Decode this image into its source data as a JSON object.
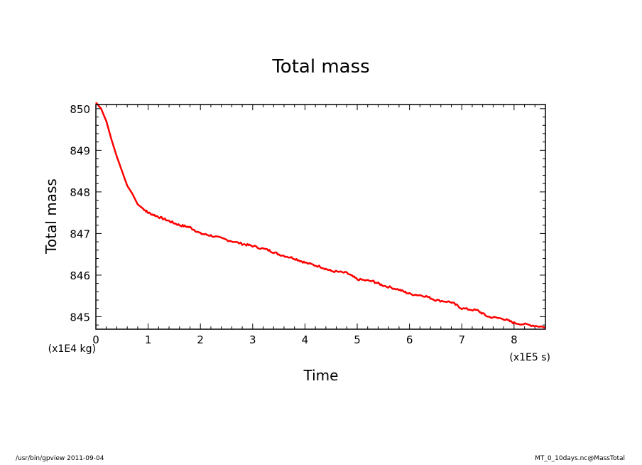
{
  "footer": {
    "left": "/usr/bin/gpview  2011-09-04",
    "right": "MT_0_10days.nc@MassTotal"
  },
  "chart_data": {
    "type": "line",
    "title": "Total mass",
    "xlabel": "Time",
    "ylabel": "Total mass",
    "x_unit": "(x1E5 s)",
    "y_unit": "(x1E4 kg)",
    "xlim": [
      0,
      8.6
    ],
    "ylim": [
      844.7,
      850.1
    ],
    "x_ticks": [
      0,
      1,
      2,
      3,
      4,
      5,
      6,
      7,
      8
    ],
    "x_tick_labels": [
      "0",
      "1",
      "2",
      "3",
      "4",
      "5",
      "6",
      "7",
      "8"
    ],
    "y_ticks": [
      845,
      846,
      847,
      848,
      849,
      850
    ],
    "y_tick_labels": [
      "845",
      "846",
      "847",
      "848",
      "849",
      "850"
    ],
    "grid": false,
    "line_color": "#ff0000",
    "series": [
      {
        "x": [
          0,
          0.1,
          0.2,
          0.3,
          0.4,
          0.5,
          0.6,
          0.7,
          0.8,
          0.9,
          1.0,
          1.2,
          1.4,
          1.6,
          1.8,
          2.0,
          2.2,
          2.5,
          2.8,
          3.0,
          3.3,
          3.5,
          3.8,
          4.0,
          4.3,
          4.5,
          4.8,
          5.0,
          5.3,
          5.5,
          5.8,
          6.0,
          6.3,
          6.5,
          6.8,
          7.0,
          7.3,
          7.5,
          7.8,
          8.0,
          8.3,
          8.6
        ],
        "y": [
          850.15,
          850.0,
          849.7,
          849.25,
          848.85,
          848.5,
          848.15,
          847.95,
          847.7,
          847.6,
          847.5,
          847.4,
          847.3,
          847.2,
          847.15,
          847.0,
          846.95,
          846.85,
          846.75,
          846.7,
          846.6,
          846.5,
          846.4,
          846.3,
          846.2,
          846.1,
          846.05,
          845.9,
          845.85,
          845.75,
          845.65,
          845.55,
          845.5,
          845.4,
          845.35,
          845.2,
          845.15,
          845.0,
          844.95,
          844.85,
          844.8,
          844.75
        ]
      }
    ]
  }
}
